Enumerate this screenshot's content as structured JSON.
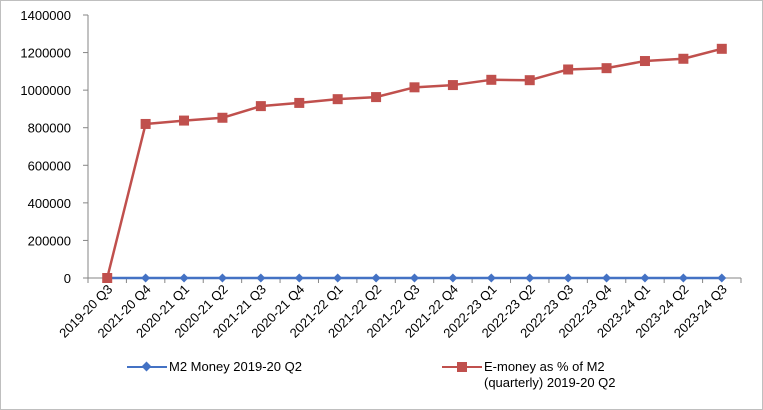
{
  "chart_data": {
    "type": "line",
    "categories": [
      "2019-20 Q3",
      "2021-20 Q4",
      "2020-21 Q1",
      "2020-21 Q2",
      "2021-21 Q3",
      "2020-21 Q4",
      "2021-22 Q1",
      "2021-22 Q2",
      "2021-22 Q3",
      "2021-22 Q4",
      "2022-23 Q1",
      "2022-23 Q2",
      "2022-23 Q3",
      "2022-23 Q4",
      "2023-24 Q1",
      "2023-24 Q2",
      "2023-24 Q3"
    ],
    "ylim": [
      0,
      1400000
    ],
    "yticks": [
      "0",
      "200000",
      "400000",
      "600000",
      "800000",
      "1000000",
      "1200000",
      "1400000"
    ],
    "series": [
      {
        "name": "M2 Money 2019-20 Q2",
        "color": "#4472c4",
        "marker": "diamond",
        "values": [
          0,
          0,
          0,
          0,
          0,
          0,
          0,
          0,
          0,
          0,
          0,
          0,
          0,
          0,
          0,
          0,
          0
        ]
      },
      {
        "name": "E-money as % of M2\n(quarterly) 2019-20 Q2",
        "color": "#c0504d",
        "marker": "square",
        "values": [
          0,
          820000,
          838000,
          853000,
          915000,
          932000,
          952000,
          963000,
          1015000,
          1027000,
          1055000,
          1053000,
          1110000,
          1117000,
          1155000,
          1167000,
          1220000
        ]
      }
    ]
  }
}
